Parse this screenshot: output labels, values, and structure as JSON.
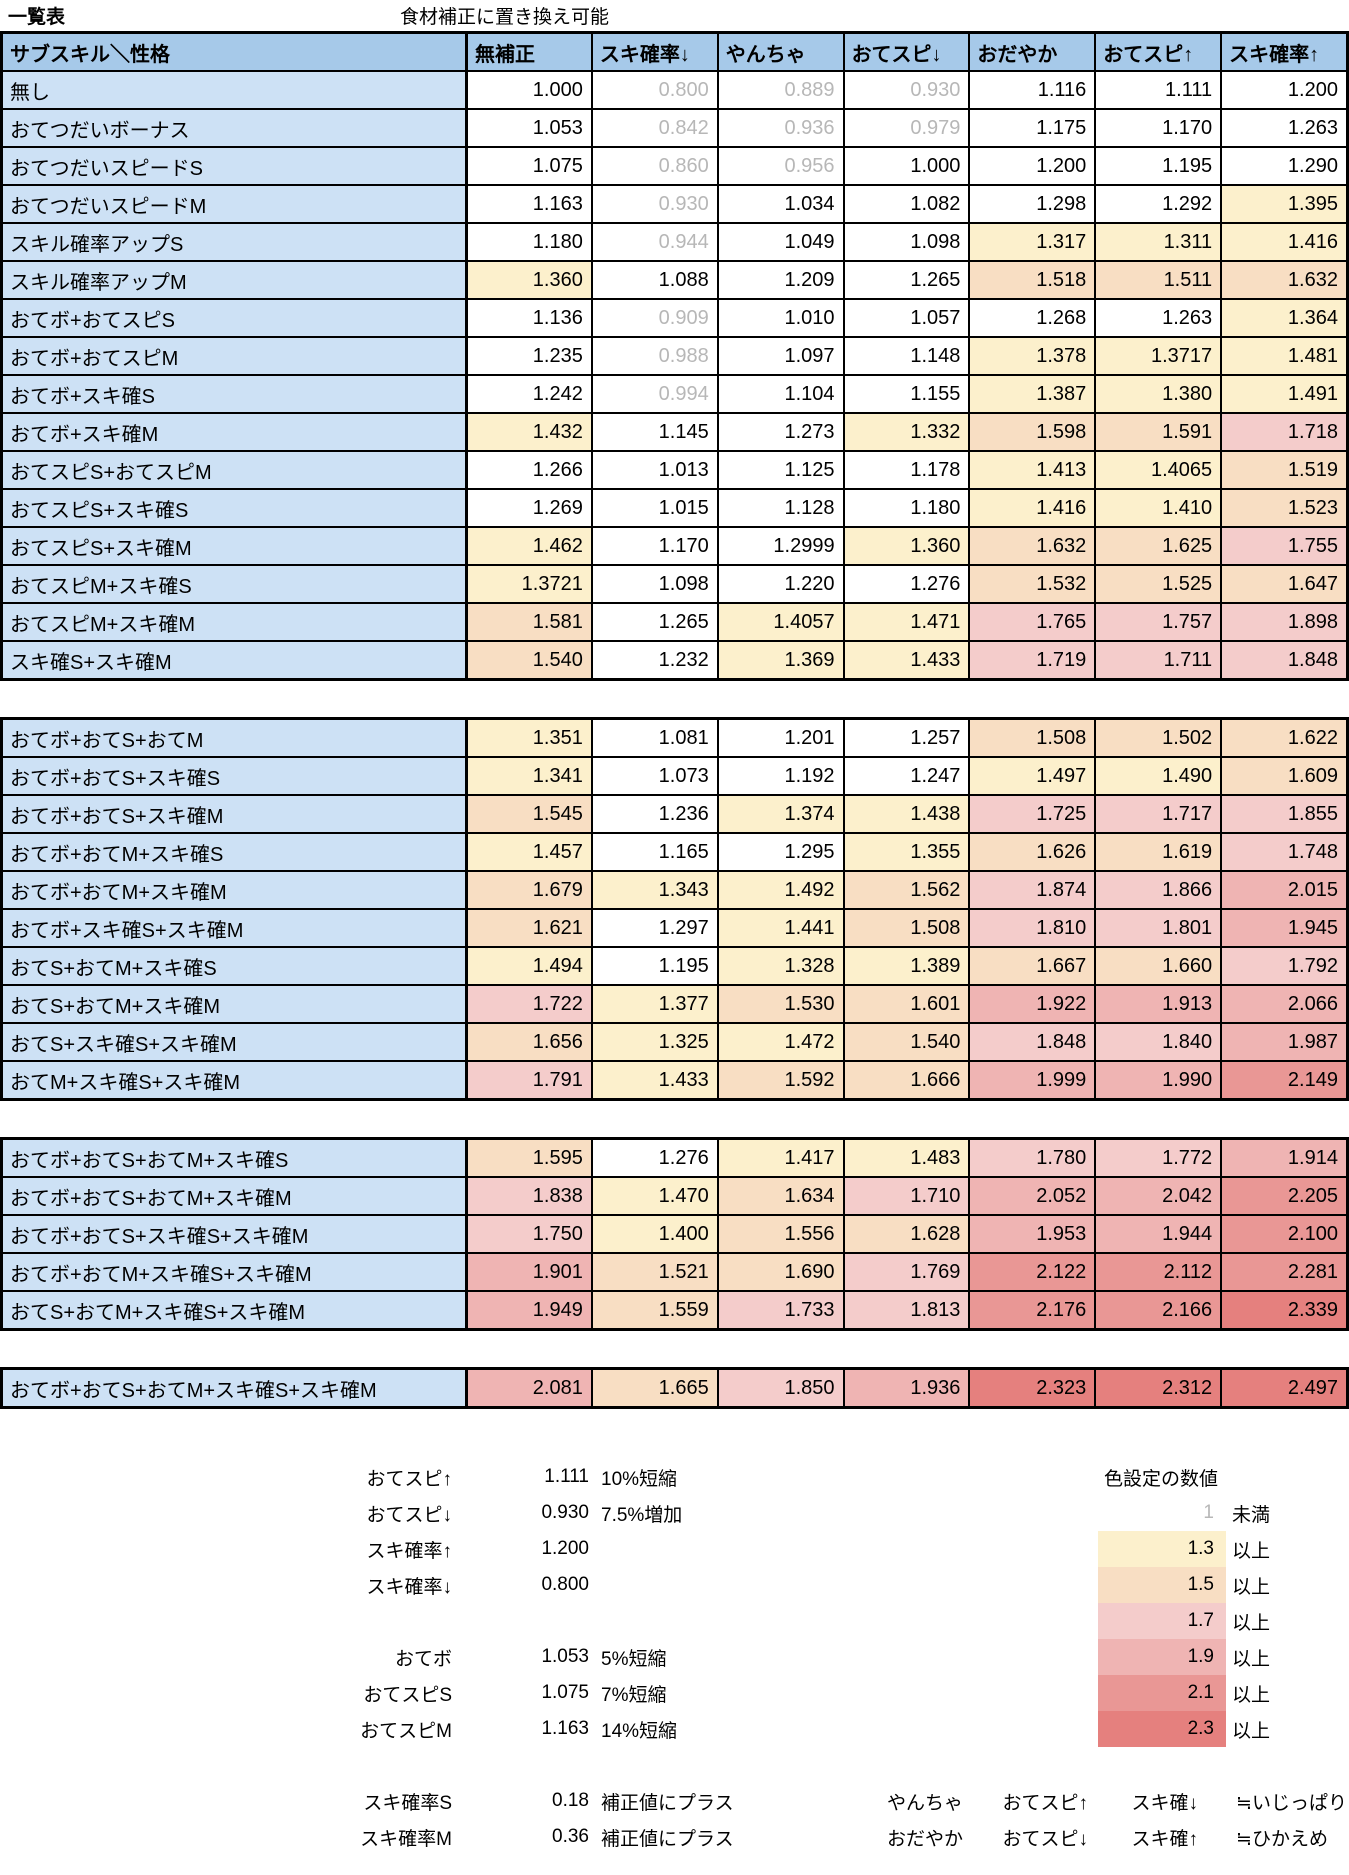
{
  "page": {
    "title": "一覧表",
    "top_note": "食材補正に置き換え可能"
  },
  "colors": {
    "header_bg": "#A6C9E9",
    "label_bg": "#CDE1F5",
    "gray_text": "#B7B7B7",
    "band_1_3": "#FCF0CC",
    "band_1_5": "#F8DEC3",
    "band_1_7": "#F4CCCB",
    "band_1_9": "#EFB4B3",
    "band_2_1": "#E99795",
    "band_2_3": "#E5807E"
  },
  "table": {
    "headers": [
      "サブスキル＼性格",
      "無補正",
      "スキ確率↓",
      "やんちゃ",
      "おてスピ↓",
      "おだやか",
      "おてスピ↑",
      "スキ確率↑"
    ],
    "sections": [
      {
        "rows": [
          {
            "label": "無し",
            "values": [
              "1.000",
              "0.800",
              "0.889",
              "0.930",
              "1.116",
              "1.111",
              "1.200"
            ]
          },
          {
            "label": "おてつだいボーナス",
            "values": [
              "1.053",
              "0.842",
              "0.936",
              "0.979",
              "1.175",
              "1.170",
              "1.263"
            ]
          },
          {
            "label": "おてつだいスピードS",
            "values": [
              "1.075",
              "0.860",
              "0.956",
              "1.000",
              "1.200",
              "1.195",
              "1.290"
            ]
          },
          {
            "label": "おてつだいスピードM",
            "values": [
              "1.163",
              "0.930",
              "1.034",
              "1.082",
              "1.298",
              "1.292",
              "1.395"
            ]
          },
          {
            "label": "スキル確率アップS",
            "values": [
              "1.180",
              "0.944",
              "1.049",
              "1.098",
              "1.317",
              "1.311",
              "1.416"
            ]
          },
          {
            "label": "スキル確率アップM",
            "values": [
              "1.360",
              "1.088",
              "1.209",
              "1.265",
              "1.518",
              "1.511",
              "1.632"
            ]
          },
          {
            "label": "おてボ+おてスピS",
            "values": [
              "1.136",
              "0.909",
              "1.010",
              "1.057",
              "1.268",
              "1.263",
              "1.364"
            ]
          },
          {
            "label": "おてボ+おてスピM",
            "values": [
              "1.235",
              "0.988",
              "1.097",
              "1.148",
              "1.378",
              "1.3717",
              "1.481"
            ]
          },
          {
            "label": "おてボ+スキ確S",
            "values": [
              "1.242",
              "0.994",
              "1.104",
              "1.155",
              "1.387",
              "1.380",
              "1.491"
            ]
          },
          {
            "label": "おてボ+スキ確M",
            "values": [
              "1.432",
              "1.145",
              "1.273",
              "1.332",
              "1.598",
              "1.591",
              "1.718"
            ]
          },
          {
            "label": "おてスピS+おてスピM",
            "values": [
              "1.266",
              "1.013",
              "1.125",
              "1.178",
              "1.413",
              "1.4065",
              "1.519"
            ]
          },
          {
            "label": "おてスピS+スキ確S",
            "values": [
              "1.269",
              "1.015",
              "1.128",
              "1.180",
              "1.416",
              "1.410",
              "1.523"
            ]
          },
          {
            "label": "おてスピS+スキ確M",
            "values": [
              "1.462",
              "1.170",
              "1.2999",
              "1.360",
              "1.632",
              "1.625",
              "1.755"
            ]
          },
          {
            "label": "おてスピM+スキ確S",
            "values": [
              "1.3721",
              "1.098",
              "1.220",
              "1.276",
              "1.532",
              "1.525",
              "1.647"
            ]
          },
          {
            "label": "おてスピM+スキ確M",
            "values": [
              "1.581",
              "1.265",
              "1.4057",
              "1.471",
              "1.765",
              "1.757",
              "1.898"
            ]
          },
          {
            "label": "スキ確S+スキ確M",
            "values": [
              "1.540",
              "1.232",
              "1.369",
              "1.433",
              "1.719",
              "1.711",
              "1.848"
            ]
          }
        ]
      },
      {
        "rows": [
          {
            "label": "おてボ+おてS+おてM",
            "values": [
              "1.351",
              "1.081",
              "1.201",
              "1.257",
              "1.508",
              "1.502",
              "1.622"
            ]
          },
          {
            "label": "おてボ+おてS+スキ確S",
            "values": [
              "1.341",
              "1.073",
              "1.192",
              "1.247",
              "1.497",
              "1.490",
              "1.609"
            ]
          },
          {
            "label": "おてボ+おてS+スキ確M",
            "values": [
              "1.545",
              "1.236",
              "1.374",
              "1.438",
              "1.725",
              "1.717",
              "1.855"
            ]
          },
          {
            "label": "おてボ+おてM+スキ確S",
            "values": [
              "1.457",
              "1.165",
              "1.295",
              "1.355",
              "1.626",
              "1.619",
              "1.748"
            ]
          },
          {
            "label": "おてボ+おてM+スキ確M",
            "values": [
              "1.679",
              "1.343",
              "1.492",
              "1.562",
              "1.874",
              "1.866",
              "2.015"
            ]
          },
          {
            "label": "おてボ+スキ確S+スキ確M",
            "values": [
              "1.621",
              "1.297",
              "1.441",
              "1.508",
              "1.810",
              "1.801",
              "1.945"
            ]
          },
          {
            "label": "おてS+おてM+スキ確S",
            "values": [
              "1.494",
              "1.195",
              "1.328",
              "1.389",
              "1.667",
              "1.660",
              "1.792"
            ]
          },
          {
            "label": "おてS+おてM+スキ確M",
            "values": [
              "1.722",
              "1.377",
              "1.530",
              "1.601",
              "1.922",
              "1.913",
              "2.066"
            ]
          },
          {
            "label": "おてS+スキ確S+スキ確M",
            "values": [
              "1.656",
              "1.325",
              "1.472",
              "1.540",
              "1.848",
              "1.840",
              "1.987"
            ]
          },
          {
            "label": "おてM+スキ確S+スキ確M",
            "values": [
              "1.791",
              "1.433",
              "1.592",
              "1.666",
              "1.999",
              "1.990",
              "2.149"
            ]
          }
        ]
      },
      {
        "rows": [
          {
            "label": "おてボ+おてS+おてM+スキ確S",
            "values": [
              "1.595",
              "1.276",
              "1.417",
              "1.483",
              "1.780",
              "1.772",
              "1.914"
            ]
          },
          {
            "label": "おてボ+おてS+おてM+スキ確M",
            "values": [
              "1.838",
              "1.470",
              "1.634",
              "1.710",
              "2.052",
              "2.042",
              "2.205"
            ]
          },
          {
            "label": "おてボ+おてS+スキ確S+スキ確M",
            "values": [
              "1.750",
              "1.400",
              "1.556",
              "1.628",
              "1.953",
              "1.944",
              "2.100"
            ]
          },
          {
            "label": "おてボ+おてM+スキ確S+スキ確M",
            "values": [
              "1.901",
              "1.521",
              "1.690",
              "1.769",
              "2.122",
              "2.112",
              "2.281"
            ]
          },
          {
            "label": "おてS+おてM+スキ確S+スキ確M",
            "values": [
              "1.949",
              "1.559",
              "1.733",
              "1.813",
              "2.176",
              "2.166",
              "2.339"
            ]
          }
        ]
      },
      {
        "rows": [
          {
            "label": "おてボ+おてS+おてM+スキ確S+スキ確M",
            "values": [
              "2.081",
              "1.665",
              "1.850",
              "1.936",
              "2.323",
              "2.312",
              "2.497"
            ]
          }
        ]
      }
    ]
  },
  "notes": {
    "multipliers": [
      {
        "label": "おてスピ↑",
        "value": "1.111",
        "desc": "10%短縮"
      },
      {
        "label": "おてスピ↓",
        "value": "0.930",
        "desc": "7.5%増加"
      },
      {
        "label": "スキ確率↑",
        "value": "1.200",
        "desc": ""
      },
      {
        "label": "スキ確率↓",
        "value": "0.800",
        "desc": ""
      }
    ],
    "subskills": [
      {
        "label": "おてボ",
        "value": "1.053",
        "desc": "5%短縮"
      },
      {
        "label": "おてスピS",
        "value": "1.075",
        "desc": "7%短縮"
      },
      {
        "label": "おてスピM",
        "value": "1.163",
        "desc": "14%短縮"
      }
    ],
    "additions": [
      {
        "label": "スキ確率S",
        "value": "0.18",
        "desc": "補正値にプラス"
      },
      {
        "label": "スキ確率M",
        "value": "0.36",
        "desc": "補正値にプラス"
      }
    ],
    "color_legend": {
      "title": "色設定の数値",
      "entries": [
        {
          "value": "1",
          "suffix": "未満",
          "tone": "lt1"
        },
        {
          "value": "1.3",
          "suffix": "以上",
          "tone": "b13"
        },
        {
          "value": "1.5",
          "suffix": "以上",
          "tone": "b15"
        },
        {
          "value": "1.7",
          "suffix": "以上",
          "tone": "b17"
        },
        {
          "value": "1.9",
          "suffix": "以上",
          "tone": "b19"
        },
        {
          "value": "2.1",
          "suffix": "以上",
          "tone": "b21"
        },
        {
          "value": "2.3",
          "suffix": "以上",
          "tone": "b23"
        }
      ]
    },
    "natures": [
      {
        "name": "やんちゃ",
        "speed": "おてスピ↑",
        "skill": "スキ確↓",
        "approx": "≒いじっぱり"
      },
      {
        "name": "おだやか",
        "speed": "おてスピ↓",
        "skill": "スキ確↑",
        "approx": "≒ひかえめ"
      }
    ]
  }
}
